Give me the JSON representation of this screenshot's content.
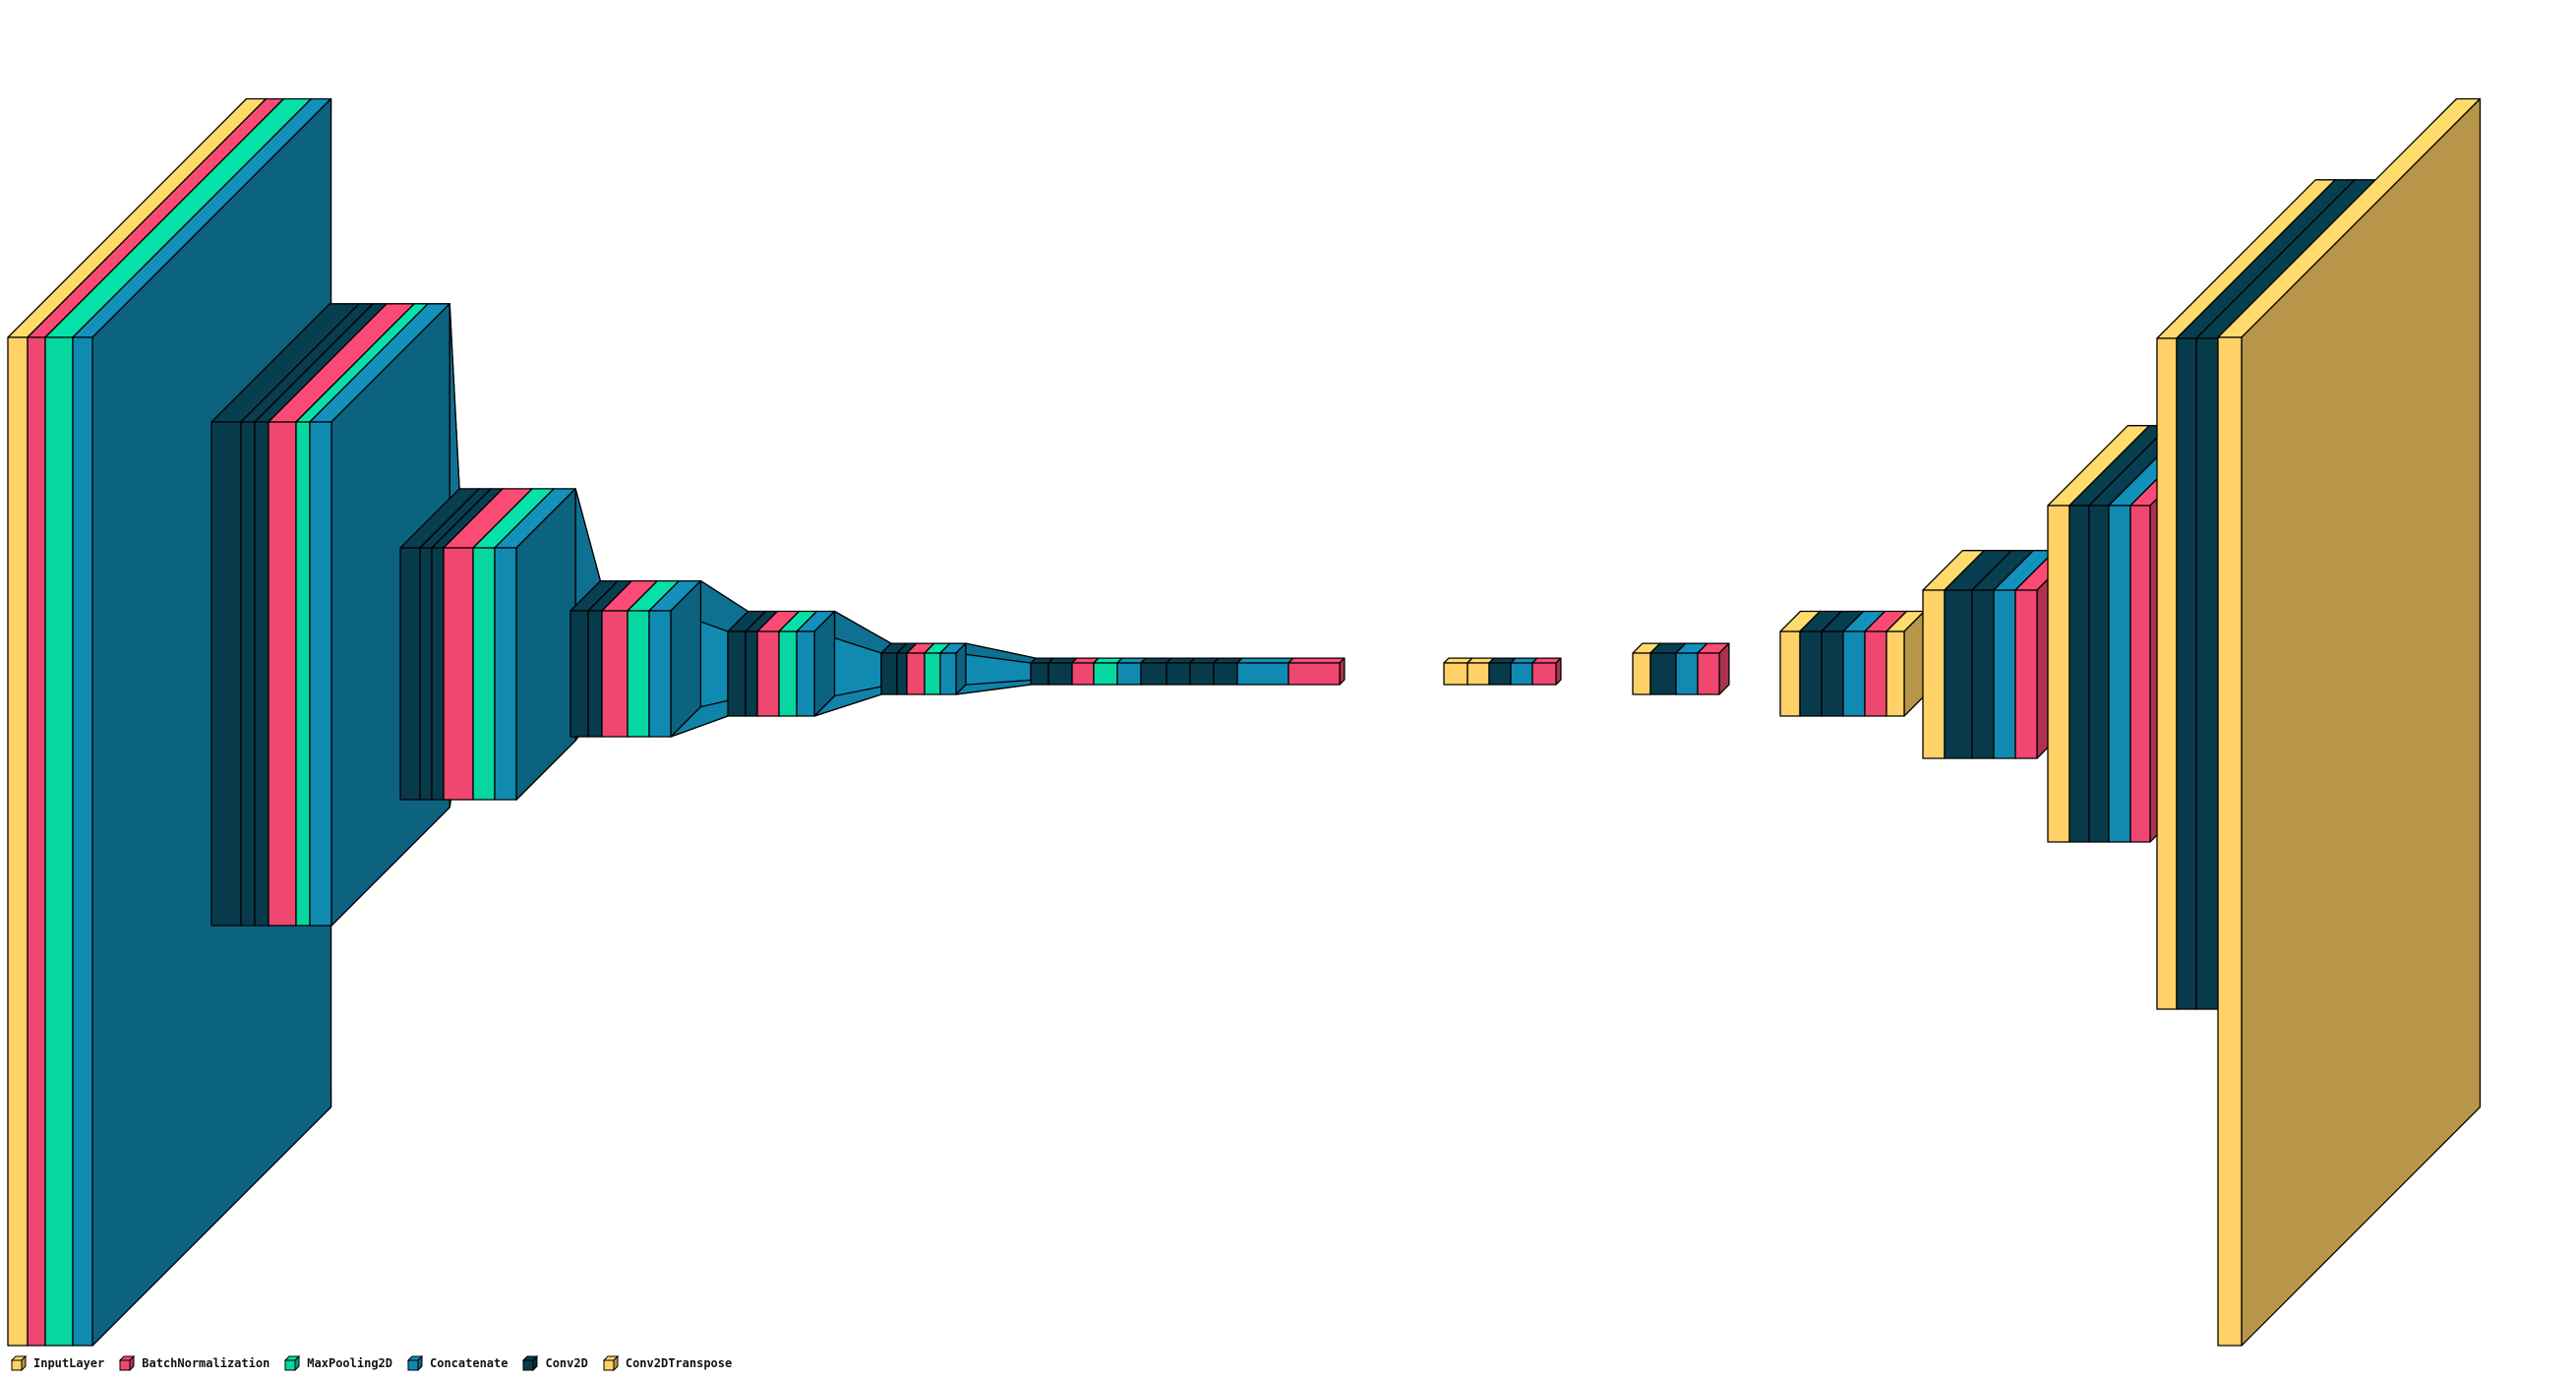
{
  "diagram": {
    "type": "unet-architecture",
    "colors": {
      "InputLayer": "#FFD166",
      "BatchNormalization": "#EF476F",
      "MaxPooling2D": "#06D6A0",
      "Concatenate": "#118AB2",
      "Conv2D": "#073B4C",
      "Conv2DTranspose": "#FFD166"
    },
    "legend": [
      {
        "label": "InputLayer",
        "layer": "InputLayer"
      },
      {
        "label": "BatchNormalization",
        "layer": "BatchNormalization"
      },
      {
        "label": "MaxPooling2D",
        "layer": "MaxPooling2D"
      },
      {
        "label": "Concatenate",
        "layer": "Concatenate"
      },
      {
        "label": "Conv2D",
        "layer": "Conv2D"
      },
      {
        "label": "Conv2DTranspose",
        "layer": "Conv2DTranspose"
      }
    ]
  }
}
